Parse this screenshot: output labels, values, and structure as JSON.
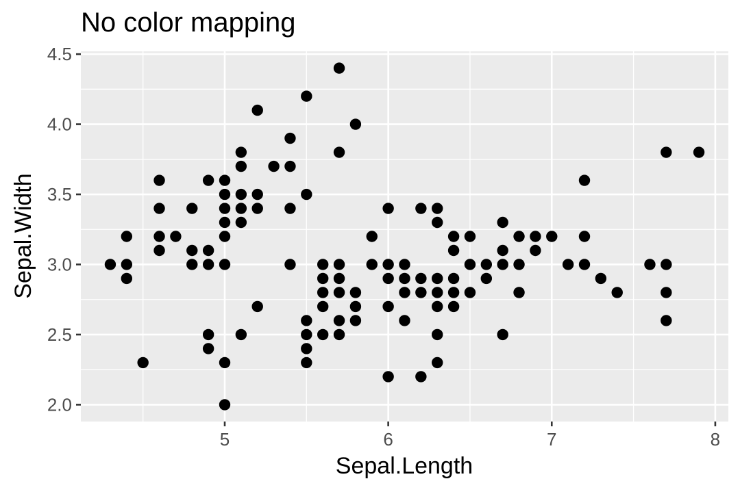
{
  "chart_data": {
    "type": "scatter",
    "title": "No color mapping",
    "xlabel": "Sepal.Length",
    "ylabel": "Sepal.Width",
    "xlim": [
      4.12,
      8.08
    ],
    "ylim": [
      1.88,
      4.52
    ],
    "x_ticks": [
      5,
      6,
      7,
      8
    ],
    "x_tick_labels": [
      "5",
      "6",
      "7",
      "8"
    ],
    "y_ticks": [
      2.0,
      2.5,
      3.0,
      3.5,
      4.0,
      4.5
    ],
    "y_tick_labels": [
      "2.0",
      "2.5",
      "3.0",
      "3.5",
      "4.0",
      "4.5"
    ],
    "grid": true,
    "legend": "none",
    "point_color": "#000000",
    "panel_color": "#ebebeb",
    "points": [
      [
        4.3,
        3.0
      ],
      [
        4.4,
        2.9
      ],
      [
        4.4,
        3.0
      ],
      [
        4.4,
        3.2
      ],
      [
        4.5,
        2.3
      ],
      [
        4.6,
        3.1
      ],
      [
        4.6,
        3.2
      ],
      [
        4.6,
        3.4
      ],
      [
        4.6,
        3.6
      ],
      [
        4.7,
        3.2
      ],
      [
        4.8,
        3.0
      ],
      [
        4.8,
        3.1
      ],
      [
        4.8,
        3.4
      ],
      [
        4.9,
        2.4
      ],
      [
        4.9,
        2.5
      ],
      [
        4.9,
        3.0
      ],
      [
        4.9,
        3.1
      ],
      [
        4.9,
        3.6
      ],
      [
        5.0,
        2.0
      ],
      [
        5.0,
        2.3
      ],
      [
        5.0,
        3.0
      ],
      [
        5.0,
        3.2
      ],
      [
        5.0,
        3.3
      ],
      [
        5.0,
        3.4
      ],
      [
        5.0,
        3.5
      ],
      [
        5.0,
        3.6
      ],
      [
        5.1,
        2.5
      ],
      [
        5.1,
        3.3
      ],
      [
        5.1,
        3.4
      ],
      [
        5.1,
        3.5
      ],
      [
        5.1,
        3.7
      ],
      [
        5.1,
        3.8
      ],
      [
        5.2,
        2.7
      ],
      [
        5.2,
        3.4
      ],
      [
        5.2,
        3.5
      ],
      [
        5.2,
        4.1
      ],
      [
        5.3,
        3.7
      ],
      [
        5.4,
        3.0
      ],
      [
        5.4,
        3.4
      ],
      [
        5.4,
        3.7
      ],
      [
        5.4,
        3.9
      ],
      [
        5.5,
        2.3
      ],
      [
        5.5,
        2.4
      ],
      [
        5.5,
        2.5
      ],
      [
        5.5,
        2.6
      ],
      [
        5.5,
        3.5
      ],
      [
        5.5,
        4.2
      ],
      [
        5.6,
        2.5
      ],
      [
        5.6,
        2.7
      ],
      [
        5.6,
        2.8
      ],
      [
        5.6,
        2.9
      ],
      [
        5.6,
        3.0
      ],
      [
        5.7,
        2.5
      ],
      [
        5.7,
        2.6
      ],
      [
        5.7,
        2.8
      ],
      [
        5.7,
        2.9
      ],
      [
        5.7,
        3.0
      ],
      [
        5.7,
        3.8
      ],
      [
        5.7,
        4.4
      ],
      [
        5.8,
        2.6
      ],
      [
        5.8,
        2.7
      ],
      [
        5.8,
        2.8
      ],
      [
        5.8,
        4.0
      ],
      [
        5.9,
        3.0
      ],
      [
        5.9,
        3.2
      ],
      [
        6.0,
        2.2
      ],
      [
        6.0,
        2.7
      ],
      [
        6.0,
        2.9
      ],
      [
        6.0,
        3.0
      ],
      [
        6.0,
        3.4
      ],
      [
        6.1,
        2.6
      ],
      [
        6.1,
        2.8
      ],
      [
        6.1,
        2.9
      ],
      [
        6.1,
        3.0
      ],
      [
        6.2,
        2.2
      ],
      [
        6.2,
        2.8
      ],
      [
        6.2,
        2.9
      ],
      [
        6.2,
        3.4
      ],
      [
        6.3,
        2.3
      ],
      [
        6.3,
        2.5
      ],
      [
        6.3,
        2.7
      ],
      [
        6.3,
        2.8
      ],
      [
        6.3,
        2.9
      ],
      [
        6.3,
        3.3
      ],
      [
        6.3,
        3.4
      ],
      [
        6.4,
        2.7
      ],
      [
        6.4,
        2.8
      ],
      [
        6.4,
        2.9
      ],
      [
        6.4,
        3.1
      ],
      [
        6.4,
        3.2
      ],
      [
        6.5,
        2.8
      ],
      [
        6.5,
        3.0
      ],
      [
        6.5,
        3.2
      ],
      [
        6.6,
        2.9
      ],
      [
        6.6,
        3.0
      ],
      [
        6.7,
        2.5
      ],
      [
        6.7,
        3.0
      ],
      [
        6.7,
        3.1
      ],
      [
        6.7,
        3.3
      ],
      [
        6.8,
        2.8
      ],
      [
        6.8,
        3.0
      ],
      [
        6.8,
        3.2
      ],
      [
        6.9,
        3.1
      ],
      [
        6.9,
        3.2
      ],
      [
        7.0,
        3.2
      ],
      [
        7.1,
        3.0
      ],
      [
        7.2,
        3.0
      ],
      [
        7.2,
        3.2
      ],
      [
        7.2,
        3.6
      ],
      [
        7.3,
        2.9
      ],
      [
        7.4,
        2.8
      ],
      [
        7.6,
        3.0
      ],
      [
        7.7,
        2.6
      ],
      [
        7.7,
        2.8
      ],
      [
        7.7,
        3.0
      ],
      [
        7.7,
        3.8
      ],
      [
        7.9,
        3.8
      ]
    ]
  }
}
